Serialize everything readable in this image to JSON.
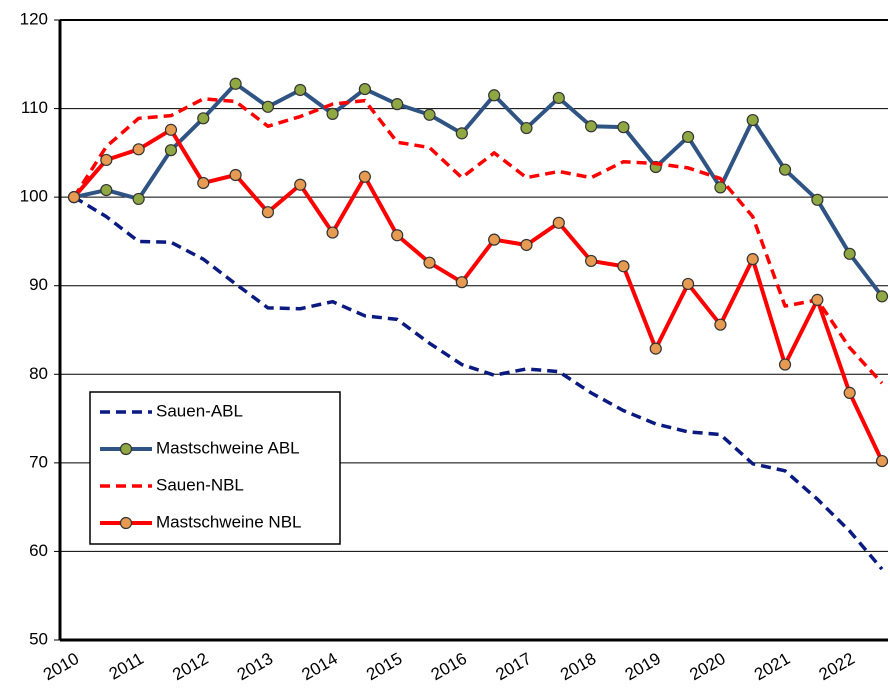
{
  "chart_data": {
    "type": "line",
    "categories": [
      "2010",
      null,
      "2011",
      null,
      "2012",
      null,
      "2013",
      null,
      "2014",
      null,
      "2015",
      null,
      "2016",
      null,
      "2017",
      null,
      "2018",
      null,
      "2019",
      null,
      "2020",
      null,
      "2021",
      null,
      "2022",
      null
    ],
    "series": [
      {
        "name": "Sauen-ABL",
        "color": "#0a1a80",
        "dashed": true,
        "markers": false,
        "values": [
          100,
          97.8,
          95.0,
          94.9,
          93.0,
          90.2,
          87.5,
          87.4,
          88.2,
          86.6,
          86.2,
          83.5,
          81.1,
          79.9,
          80.6,
          80.3,
          77.9,
          75.9,
          74.4,
          73.5,
          73.2,
          69.9,
          69.1,
          65.9,
          62.3,
          58.0
        ]
      },
      {
        "name": "Mastschweine ABL",
        "color": "#2f5483",
        "marker_color": "#8fa843",
        "dashed": false,
        "markers": true,
        "values": [
          100,
          100.8,
          99.8,
          105.3,
          108.9,
          112.8,
          110.2,
          112.1,
          109.4,
          112.2,
          110.5,
          109.3,
          107.2,
          111.5,
          107.8,
          111.2,
          108.0,
          107.9,
          103.4,
          106.8,
          101.1,
          108.7,
          103.1,
          99.7,
          93.6,
          88.8
        ]
      },
      {
        "name": "Sauen-NBL",
        "color": "#ff0000",
        "dashed": true,
        "markers": false,
        "values": [
          100,
          105.7,
          108.9,
          109.2,
          111.1,
          110.8,
          108.0,
          109.1,
          110.5,
          110.9,
          106.2,
          105.6,
          102.2,
          105.0,
          102.2,
          102.9,
          102.2,
          104.0,
          103.8,
          103.3,
          102.1,
          97.8,
          87.7,
          88.4,
          83.0,
          79.0
        ]
      },
      {
        "name": "Mastschweine NBL",
        "color": "#ff0000",
        "marker_color": "#e69a52",
        "dashed": false,
        "markers": true,
        "values": [
          100,
          104.2,
          105.4,
          107.6,
          101.6,
          102.5,
          98.3,
          101.4,
          96.0,
          102.3,
          95.7,
          92.6,
          90.4,
          95.2,
          94.6,
          97.1,
          92.8,
          92.2,
          82.9,
          90.2,
          85.6,
          93.0,
          81.1,
          88.4,
          77.9,
          70.2
        ]
      }
    ],
    "ylim": [
      50,
      120
    ],
    "yticks": [
      50,
      60,
      70,
      80,
      90,
      100,
      110,
      120
    ],
    "grid": true,
    "legend": "lower-left"
  }
}
